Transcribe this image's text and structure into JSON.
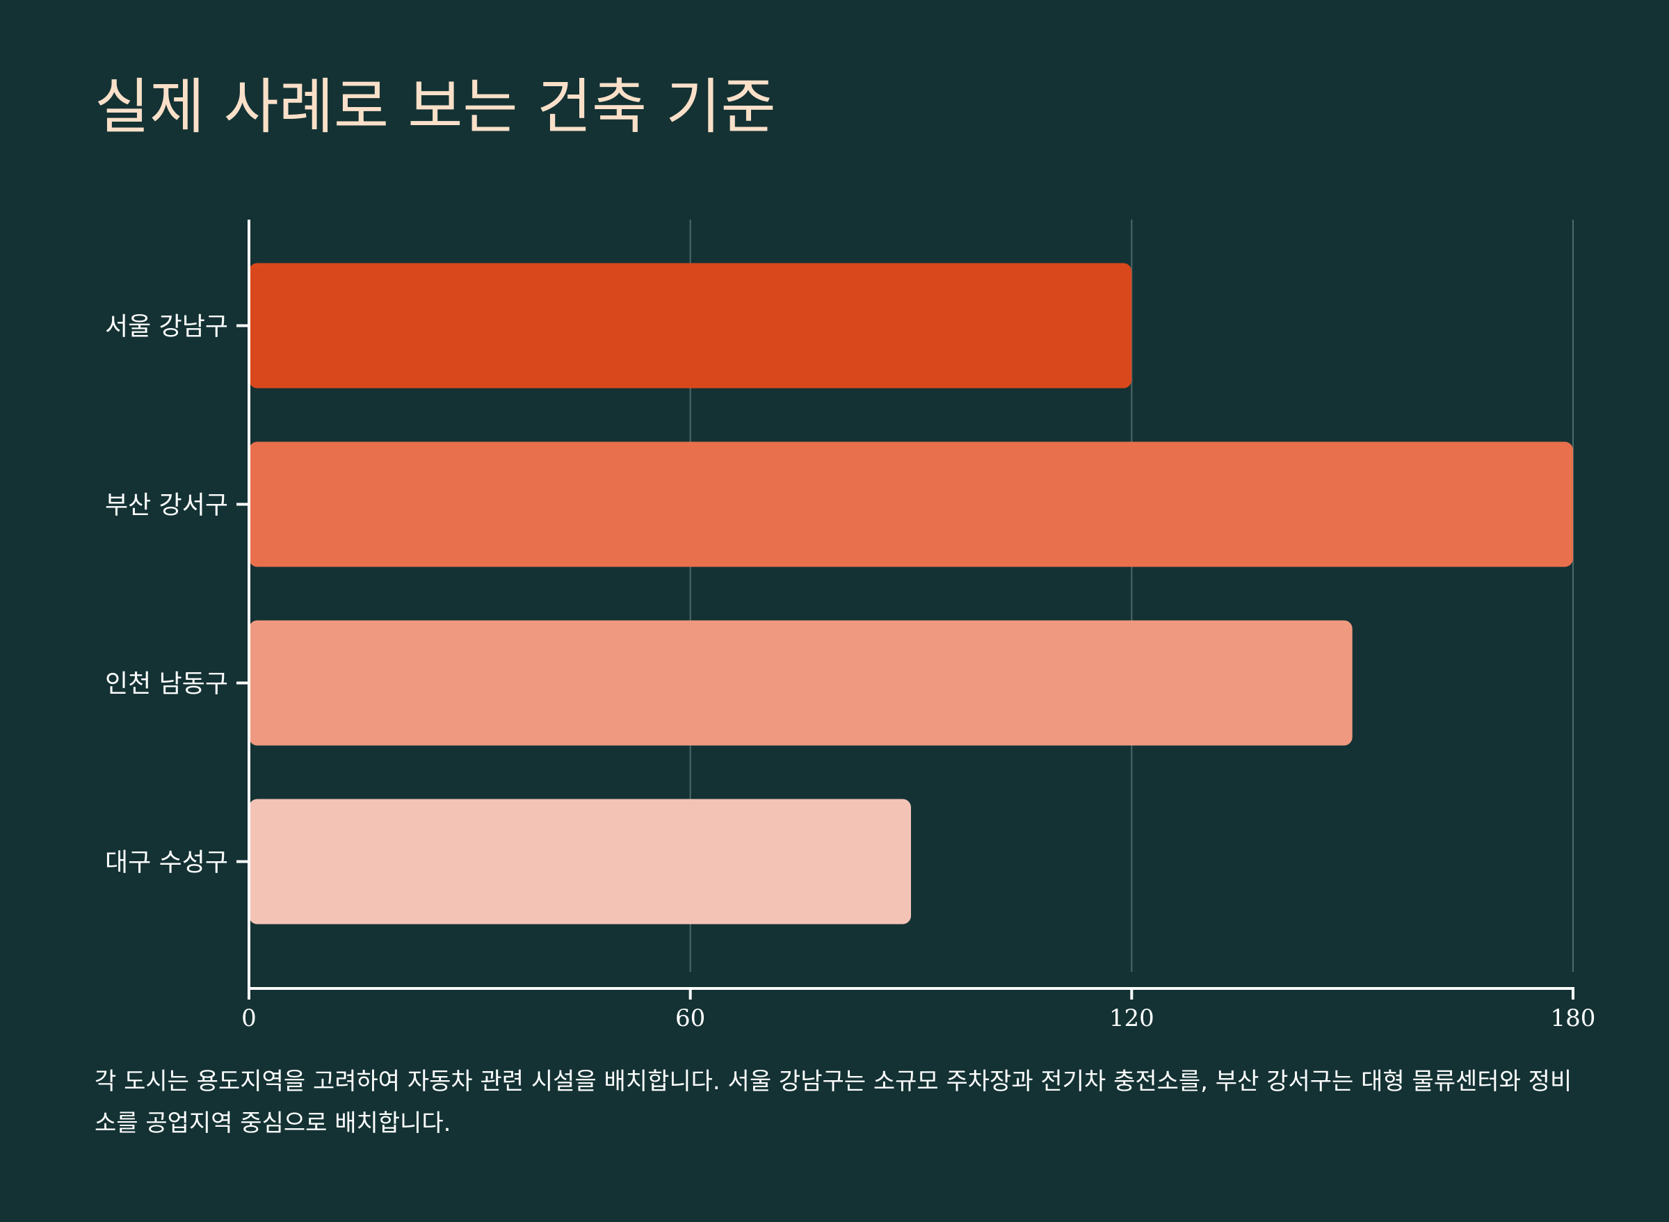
{
  "title": "실제 사례로 보는 건축 기준",
  "caption": "각 도시는 용도지역을 고려하여 자동차 관련 시설을 배치합니다. 서울 강남구는 소규모 주차장과 전기차 충전소를, 부산 강서구는 대형 물류센터와 정비소를 공업지역 중심으로 배치합니다.",
  "colors": {
    "background": "#143234",
    "title": "#fbe0c9",
    "axis": "#ffffff",
    "grid": "#4e6869"
  },
  "chart_data": {
    "type": "bar",
    "orientation": "horizontal",
    "categories": [
      "서울 강남구",
      "부산 강서구",
      "인천 남동구",
      "대구 수성구"
    ],
    "values": [
      120,
      180,
      150,
      90
    ],
    "bar_colors": [
      "#d9481c",
      "#e8704d",
      "#ef9a80",
      "#f3c4b6"
    ],
    "xlim": [
      0,
      180
    ],
    "x_ticks": [
      0,
      60,
      120,
      180
    ],
    "grid": "vertical",
    "title": "실제 사례로 보는 건축 기준",
    "xlabel": "",
    "ylabel": ""
  }
}
